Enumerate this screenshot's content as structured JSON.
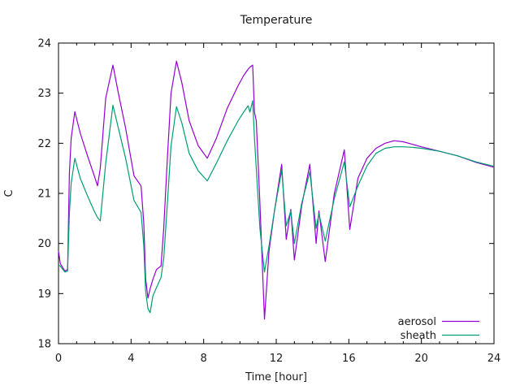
{
  "chart_data": {
    "type": "line",
    "title": "Temperature",
    "xlabel": "Time [hour]",
    "ylabel": "C",
    "xlim": [
      0,
      24
    ],
    "ylim": [
      18,
      24
    ],
    "xticks": [
      0,
      4,
      8,
      12,
      16,
      20,
      24
    ],
    "yticks": [
      18,
      19,
      20,
      21,
      22,
      23,
      24
    ],
    "x_minor_step": 1,
    "grid": false,
    "legend_position": "inside-bottom-right",
    "axis_color": "#000000",
    "text_color": "#1a1a1a",
    "x": [
      0.0,
      0.1,
      0.35,
      0.5,
      0.6,
      0.7,
      0.9,
      1.2,
      1.6,
      2.0,
      2.15,
      2.3,
      2.6,
      3.0,
      3.3,
      3.7,
      4.16,
      4.55,
      4.7,
      4.8,
      4.93,
      5.05,
      5.2,
      5.4,
      5.65,
      5.8,
      6.0,
      6.2,
      6.5,
      6.8,
      7.2,
      7.7,
      8.2,
      8.7,
      9.3,
      9.9,
      10.2,
      10.45,
      10.55,
      10.7,
      10.8,
      10.9,
      11.1,
      11.35,
      11.6,
      11.9,
      12.3,
      12.55,
      12.8,
      13.0,
      13.4,
      13.85,
      14.2,
      14.35,
      14.7,
      15.2,
      15.75,
      16.05,
      16.5,
      17.0,
      17.5,
      18.0,
      18.5,
      19.0,
      19.5,
      20.0,
      21.0,
      22.0,
      23.0,
      24.0
    ],
    "series": [
      {
        "name": "aerosol",
        "color": "#9400d3",
        "values": [
          19.85,
          19.6,
          19.45,
          19.48,
          21.4,
          22.1,
          22.63,
          22.2,
          21.75,
          21.32,
          21.15,
          21.5,
          22.9,
          23.56,
          23.0,
          22.3,
          21.35,
          21.15,
          20.4,
          19.3,
          18.91,
          19.1,
          19.28,
          19.48,
          19.55,
          20.3,
          21.7,
          23.0,
          23.64,
          23.2,
          22.45,
          21.95,
          21.7,
          22.1,
          22.7,
          23.15,
          23.35,
          23.48,
          23.52,
          23.56,
          22.62,
          22.45,
          20.8,
          18.49,
          19.85,
          20.65,
          21.58,
          20.08,
          20.68,
          19.67,
          20.75,
          21.58,
          20.0,
          20.65,
          19.64,
          21.0,
          21.87,
          20.28,
          21.3,
          21.7,
          21.9,
          22.0,
          22.05,
          22.03,
          21.98,
          21.93,
          21.84,
          21.75,
          21.62,
          21.52
        ]
      },
      {
        "name": "sheath",
        "color": "#009e73",
        "values": [
          19.57,
          19.55,
          19.43,
          19.45,
          20.6,
          21.2,
          21.7,
          21.3,
          20.95,
          20.62,
          20.52,
          20.45,
          21.6,
          22.76,
          22.3,
          21.7,
          20.86,
          20.62,
          19.95,
          19.05,
          18.7,
          18.62,
          18.95,
          19.12,
          19.32,
          19.7,
          20.8,
          21.95,
          22.73,
          22.4,
          21.8,
          21.45,
          21.25,
          21.6,
          22.05,
          22.45,
          22.62,
          22.75,
          22.62,
          22.85,
          22.1,
          21.5,
          20.3,
          19.43,
          19.95,
          20.65,
          21.46,
          20.35,
          20.65,
          20.0,
          20.8,
          21.43,
          20.3,
          20.6,
          20.05,
          20.9,
          21.63,
          20.73,
          21.15,
          21.55,
          21.8,
          21.9,
          21.93,
          21.93,
          21.92,
          21.9,
          21.84,
          21.75,
          21.63,
          21.54
        ]
      }
    ]
  }
}
